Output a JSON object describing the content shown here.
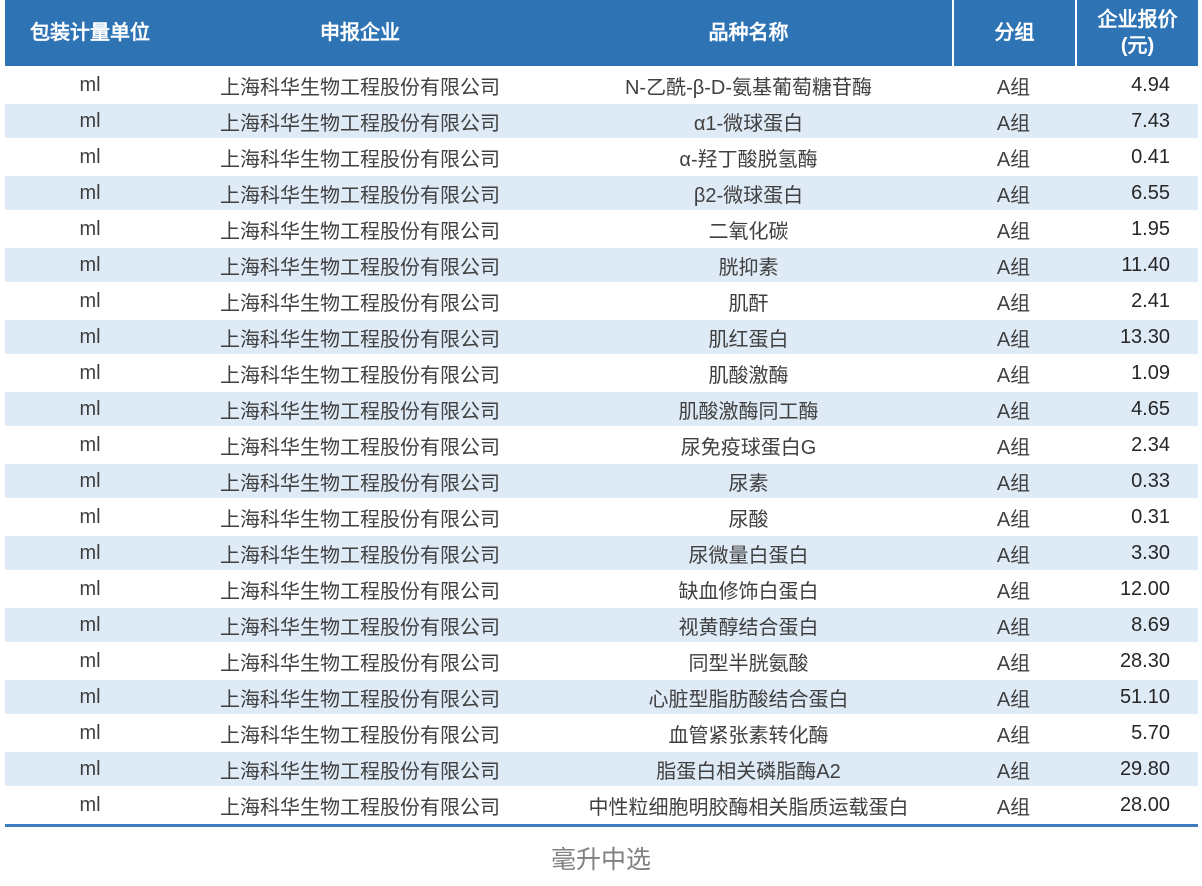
{
  "colors": {
    "header_bg": "#2E74B5",
    "stripe_row_bg": "#DEEAF6",
    "bottom_rule": "#3E7CC0",
    "header_text": "#FFFFFF",
    "cell_text": "#404040",
    "caption_text": "#808080"
  },
  "chart_data": {
    "type": "table",
    "title": "毫升中选",
    "columns": [
      {
        "label": "包装计量单位"
      },
      {
        "label": "申报企业"
      },
      {
        "label": "品种名称"
      },
      {
        "label": "分组"
      },
      {
        "label": "企业报价",
        "sublabel": "(元)"
      }
    ],
    "rows": [
      {
        "unit": "ml",
        "company": "上海科华生物工程股份有限公司",
        "product": "N-乙酰-β-D-氨基葡萄糖苷酶",
        "group": "A组",
        "price": "4.94"
      },
      {
        "unit": "ml",
        "company": "上海科华生物工程股份有限公司",
        "product": "α1-微球蛋白",
        "group": "A组",
        "price": "7.43"
      },
      {
        "unit": "ml",
        "company": "上海科华生物工程股份有限公司",
        "product": "α-羟丁酸脱氢酶",
        "group": "A组",
        "price": "0.41"
      },
      {
        "unit": "ml",
        "company": "上海科华生物工程股份有限公司",
        "product": "β2-微球蛋白",
        "group": "A组",
        "price": "6.55"
      },
      {
        "unit": "ml",
        "company": "上海科华生物工程股份有限公司",
        "product": "二氧化碳",
        "group": "A组",
        "price": "1.95"
      },
      {
        "unit": "ml",
        "company": "上海科华生物工程股份有限公司",
        "product": "胱抑素",
        "group": "A组",
        "price": "11.40"
      },
      {
        "unit": "ml",
        "company": "上海科华生物工程股份有限公司",
        "product": "肌酐",
        "group": "A组",
        "price": "2.41"
      },
      {
        "unit": "ml",
        "company": "上海科华生物工程股份有限公司",
        "product": "肌红蛋白",
        "group": "A组",
        "price": "13.30"
      },
      {
        "unit": "ml",
        "company": "上海科华生物工程股份有限公司",
        "product": "肌酸激酶",
        "group": "A组",
        "price": "1.09"
      },
      {
        "unit": "ml",
        "company": "上海科华生物工程股份有限公司",
        "product": "肌酸激酶同工酶",
        "group": "A组",
        "price": "4.65"
      },
      {
        "unit": "ml",
        "company": "上海科华生物工程股份有限公司",
        "product": "尿免疫球蛋白G",
        "group": "A组",
        "price": "2.34"
      },
      {
        "unit": "ml",
        "company": "上海科华生物工程股份有限公司",
        "product": "尿素",
        "group": "A组",
        "price": "0.33"
      },
      {
        "unit": "ml",
        "company": "上海科华生物工程股份有限公司",
        "product": "尿酸",
        "group": "A组",
        "price": "0.31"
      },
      {
        "unit": "ml",
        "company": "上海科华生物工程股份有限公司",
        "product": "尿微量白蛋白",
        "group": "A组",
        "price": "3.30"
      },
      {
        "unit": "ml",
        "company": "上海科华生物工程股份有限公司",
        "product": "缺血修饰白蛋白",
        "group": "A组",
        "price": "12.00"
      },
      {
        "unit": "ml",
        "company": "上海科华生物工程股份有限公司",
        "product": "视黄醇结合蛋白",
        "group": "A组",
        "price": "8.69"
      },
      {
        "unit": "ml",
        "company": "上海科华生物工程股份有限公司",
        "product": "同型半胱氨酸",
        "group": "A组",
        "price": "28.30"
      },
      {
        "unit": "ml",
        "company": "上海科华生物工程股份有限公司",
        "product": "心脏型脂肪酸结合蛋白",
        "group": "A组",
        "price": "51.10"
      },
      {
        "unit": "ml",
        "company": "上海科华生物工程股份有限公司",
        "product": "血管紧张素转化酶",
        "group": "A组",
        "price": "5.70"
      },
      {
        "unit": "ml",
        "company": "上海科华生物工程股份有限公司",
        "product": "脂蛋白相关磷脂酶A2",
        "group": "A组",
        "price": "29.80"
      },
      {
        "unit": "ml",
        "company": "上海科华生物工程股份有限公司",
        "product": "中性粒细胞明胶酶相关脂质运载蛋白",
        "group": "A组",
        "price": "28.00"
      }
    ]
  }
}
